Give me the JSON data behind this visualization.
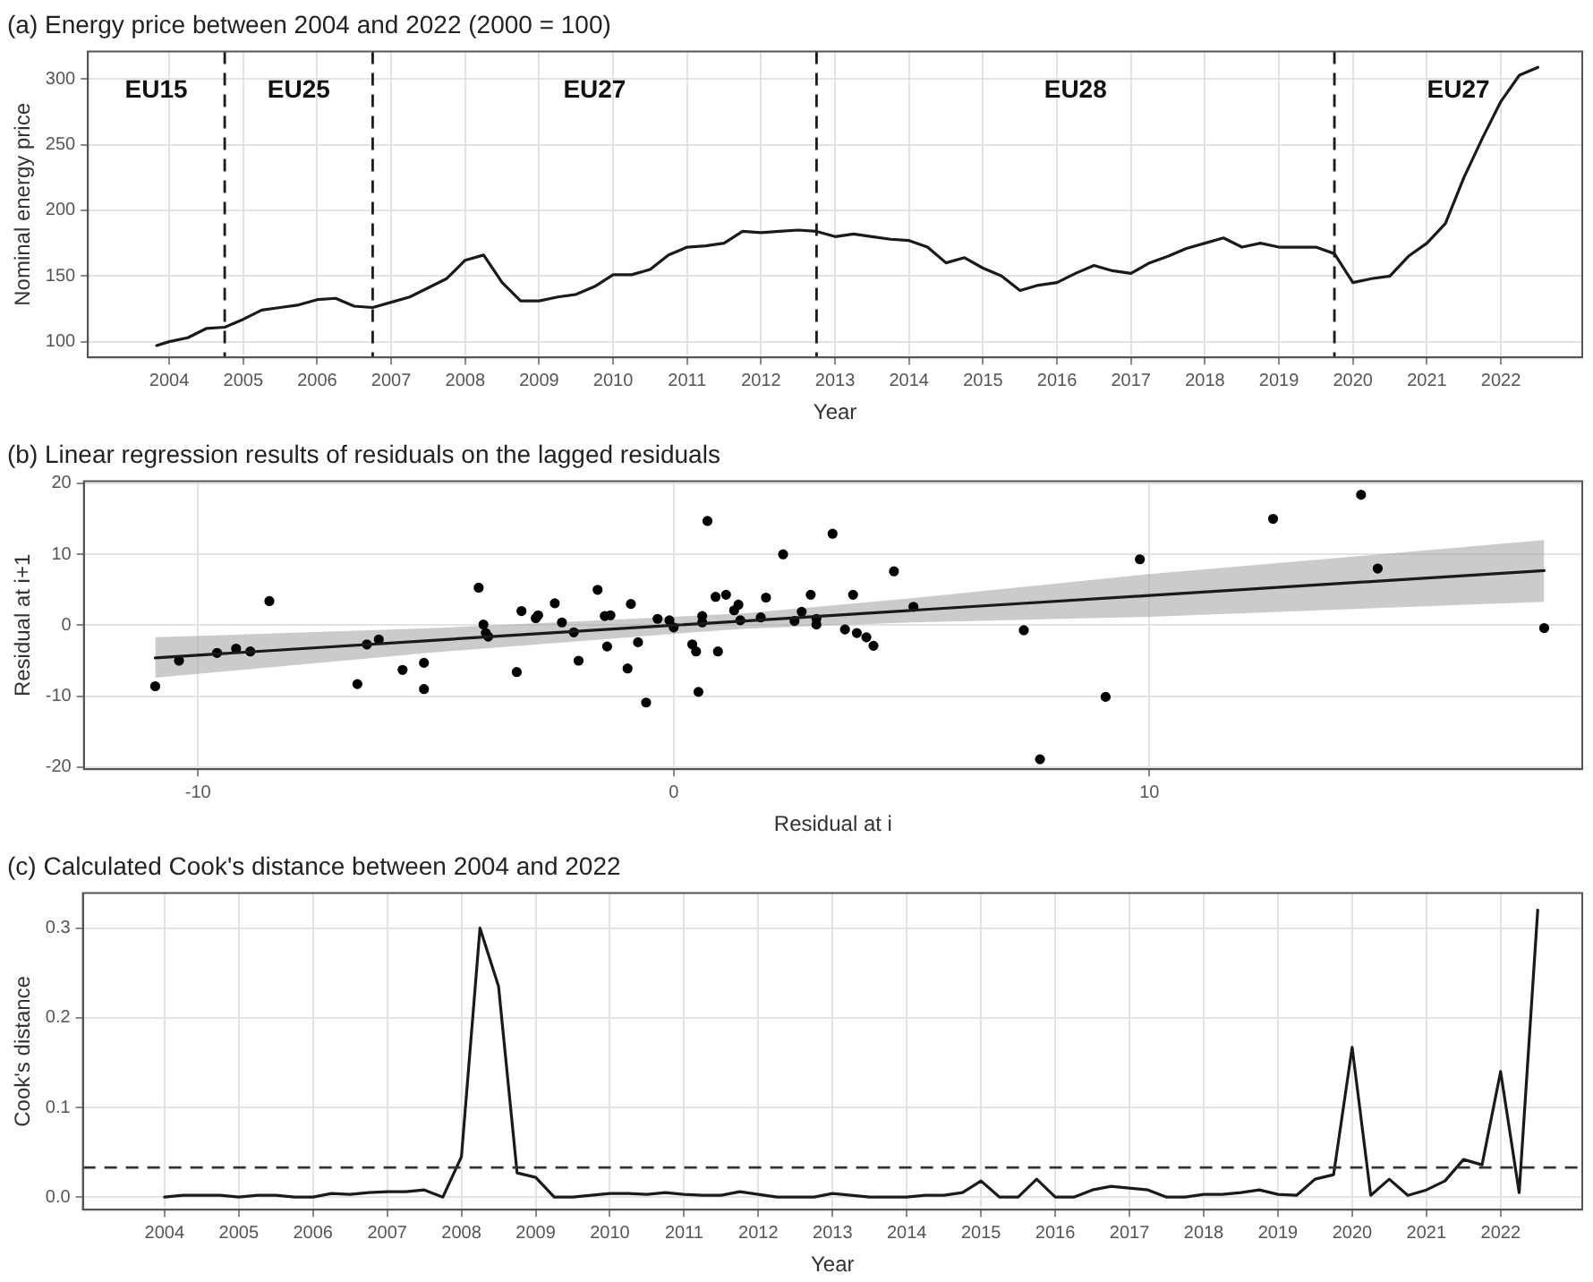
{
  "chart_data": [
    {
      "type": "line",
      "title": "(a) Energy price between 2004 and 2022 (2000 = 100)",
      "xlabel": "Year",
      "ylabel": "Nominal energy price",
      "xlim": [
        2002.9,
        2023.1
      ],
      "ylim": [
        88,
        321
      ],
      "xticks": [
        2004,
        2005,
        2006,
        2007,
        2008,
        2009,
        2010,
        2011,
        2012,
        2013,
        2014,
        2015,
        2016,
        2017,
        2018,
        2019,
        2020,
        2021,
        2022
      ],
      "yticks": [
        100,
        150,
        200,
        250,
        300
      ],
      "grid": true,
      "legend": false,
      "marker": "none",
      "line_style": "solid",
      "series": [
        {
          "color": "#1a1a1a",
          "x": [
            2003.83,
            2004,
            2004.25,
            2004.5,
            2004.75,
            2005,
            2005.25,
            2005.5,
            2005.75,
            2006,
            2006.25,
            2006.5,
            2006.75,
            2007,
            2007.25,
            2007.5,
            2007.75,
            2008,
            2008.25,
            2008.5,
            2008.75,
            2009,
            2009.25,
            2009.5,
            2009.75,
            2010,
            2010.25,
            2010.5,
            2010.75,
            2011,
            2011.25,
            2011.5,
            2011.75,
            2012,
            2012.25,
            2012.5,
            2012.75,
            2013,
            2013.25,
            2013.5,
            2013.75,
            2014,
            2014.25,
            2014.5,
            2014.75,
            2015,
            2015.25,
            2015.5,
            2015.75,
            2016,
            2016.25,
            2016.5,
            2016.75,
            2017,
            2017.25,
            2017.5,
            2017.75,
            2018,
            2018.25,
            2018.5,
            2018.75,
            2019,
            2019.25,
            2019.5,
            2019.75,
            2020,
            2020.25,
            2020.5,
            2020.75,
            2021,
            2021.25,
            2021.5,
            2021.75,
            2022,
            2022.25,
            2022.5
          ],
          "values": [
            97,
            100,
            103,
            110,
            111,
            117,
            124,
            126,
            128,
            132,
            133,
            127,
            126,
            130,
            134,
            141,
            148,
            162,
            166,
            145,
            131,
            131,
            134,
            136,
            142,
            151,
            151,
            155,
            166,
            172,
            173,
            175,
            184,
            183,
            184,
            185,
            184,
            180,
            182,
            180,
            178,
            177,
            172,
            160,
            164,
            156,
            150,
            139,
            143,
            145,
            152,
            158,
            154,
            152,
            160,
            165,
            171,
            175,
            179,
            172,
            175,
            172,
            172,
            172,
            167,
            145,
            148,
            150,
            165,
            175,
            190,
            225,
            255,
            283,
            303,
            309
          ]
        }
      ],
      "ref_lines": [
        {
          "axis": "x",
          "value": 2004.75,
          "line_style": "dashed",
          "color": "#1a1a1a"
        },
        {
          "axis": "x",
          "value": 2006.75,
          "line_style": "dashed",
          "color": "#1a1a1a"
        },
        {
          "axis": "x",
          "value": 2012.75,
          "line_style": "dashed",
          "color": "#1a1a1a"
        },
        {
          "axis": "x",
          "value": 2019.75,
          "line_style": "dashed",
          "color": "#1a1a1a"
        }
      ],
      "annotations": [
        "EU15",
        "EU25",
        "EU27",
        "EU28",
        "EU27"
      ]
    },
    {
      "type": "scatter",
      "title": "(b) Linear regression results of residuals on the lagged residuals",
      "xlabel": "Residual at i",
      "ylabel": "Residual at i+1",
      "xlim": [
        -12.4,
        19.1
      ],
      "ylim": [
        -20.3,
        20.3
      ],
      "xticks": [
        -10,
        0,
        10
      ],
      "yticks": [
        -20,
        -10,
        0,
        10,
        20
      ],
      "grid": true,
      "legend": false,
      "marker": "circle",
      "series": [
        {
          "type": "line",
          "color": "#1a1a1a",
          "marker": "none",
          "x": [
            -10.9,
            -5,
            0,
            1.5,
            5,
            10,
            18.3
          ],
          "values": [
            -4.6,
            -2.1,
            0,
            0.6,
            2.1,
            4.2,
            7.7
          ],
          "lower": [
            -7.4,
            -3.8,
            -1.2,
            -0.5,
            0.4,
            1.2,
            3.3
          ],
          "upper": [
            -1.7,
            -0.4,
            1.2,
            1.7,
            3.8,
            7.2,
            12
          ]
        },
        {
          "color": "#000000",
          "x": [
            -10.9,
            -10.4,
            -9.6,
            -9.2,
            -8.9,
            -8.5,
            -6.65,
            -6.45,
            -6.2,
            -5.7,
            -5.25,
            -5.25,
            -4.1,
            -4.0,
            -3.95,
            -3.9,
            -3.3,
            -3.2,
            -2.9,
            -2.85,
            -2.5,
            -2.35,
            -2.1,
            -2.0,
            -1.6,
            -1.45,
            -1.33,
            -1.4,
            -0.97,
            -0.9,
            -0.75,
            -0.58,
            -0.34,
            -0.09,
            0,
            0.39,
            0.47,
            0.52,
            0.6,
            0.6,
            0.71,
            0.88,
            0.93,
            1.1,
            1.27,
            1.36,
            1.4,
            1.94,
            1.83,
            2.3,
            2.54,
            2.69,
            2.88,
            3.0,
            3.0,
            3.34,
            3.6,
            3.77,
            3.85,
            4.05,
            4.2,
            4.63,
            5.04,
            7.36,
            7.7,
            9.08,
            9.8,
            12.6,
            14.45,
            14.8,
            18.3
          ],
          "values": [
            -8.6,
            -5,
            -3.9,
            -3.3,
            -3.7,
            3.4,
            -8.3,
            -2.7,
            -2,
            -6.3,
            -5.3,
            -9,
            5.3,
            0.1,
            -1.1,
            -1.6,
            -6.6,
            2,
            1,
            1.4,
            3.1,
            0.4,
            -1,
            -5,
            5,
            1.3,
            1.4,
            -3,
            -6.1,
            3,
            -2.4,
            -10.9,
            0.9,
            0.7,
            -0.3,
            -2.7,
            -3.7,
            -9.4,
            1.3,
            0.4,
            14.7,
            4,
            -3.7,
            4.3,
            2.1,
            2.9,
            0.7,
            3.9,
            1.1,
            10,
            0.6,
            1.9,
            4.3,
            0.1,
            0.9,
            12.9,
            -0.6,
            4.3,
            -1.1,
            -1.7,
            -2.9,
            7.6,
            2.6,
            -0.7,
            -18.9,
            -10.1,
            9.3,
            15,
            18.4,
            8,
            -0.4
          ]
        }
      ]
    },
    {
      "type": "line",
      "title": "(c) Calculated Cook's distance between 2004 and 2022",
      "xlabel": "Year",
      "ylabel": "Cook's distance",
      "xlim": [
        2002.9,
        2023.1
      ],
      "ylim": [
        -0.014,
        0.339
      ],
      "xticks": [
        2004,
        2005,
        2006,
        2007,
        2008,
        2009,
        2010,
        2011,
        2012,
        2013,
        2014,
        2015,
        2016,
        2017,
        2018,
        2019,
        2020,
        2021,
        2022
      ],
      "yticks": [
        {
          "value": 0,
          "label": "0.0"
        },
        0.1,
        0.2,
        0.3
      ],
      "grid": true,
      "legend": false,
      "marker": "none",
      "line_style": "solid",
      "series": [
        {
          "color": "#1a1a1a",
          "x": [
            2004,
            2004.25,
            2004.5,
            2004.75,
            2005,
            2005.25,
            2005.5,
            2005.75,
            2006,
            2006.25,
            2006.5,
            2006.75,
            2007,
            2007.25,
            2007.5,
            2007.75,
            2008,
            2008.25,
            2008.5,
            2008.75,
            2009,
            2009.25,
            2009.5,
            2009.75,
            2010,
            2010.25,
            2010.5,
            2010.75,
            2011,
            2011.25,
            2011.5,
            2011.75,
            2012,
            2012.25,
            2012.5,
            2012.75,
            2013,
            2013.25,
            2013.5,
            2013.75,
            2014,
            2014.25,
            2014.5,
            2014.75,
            2015,
            2015.25,
            2015.5,
            2015.75,
            2016,
            2016.25,
            2016.5,
            2016.75,
            2017,
            2017.25,
            2017.5,
            2017.75,
            2018,
            2018.25,
            2018.5,
            2018.75,
            2019,
            2019.25,
            2019.5,
            2019.75,
            2020,
            2020.25,
            2020.5,
            2020.75,
            2021,
            2021.25,
            2021.5,
            2021.75,
            2022,
            2022.25,
            2022.5
          ],
          "values": [
            0,
            0.002,
            0.002,
            0.002,
            0,
            0.002,
            0.002,
            0,
            0,
            0.004,
            0.003,
            0.005,
            0.006,
            0.006,
            0.008,
            0,
            0.045,
            0.3,
            0.235,
            0.027,
            0.022,
            0,
            0,
            0.002,
            0.004,
            0.004,
            0.003,
            0.005,
            0.003,
            0.002,
            0.002,
            0.006,
            0.003,
            0,
            0,
            0,
            0.004,
            0.002,
            0,
            0,
            0,
            0.002,
            0.002,
            0.005,
            0.018,
            0,
            0,
            0.02,
            0,
            0,
            0.008,
            0.012,
            0.01,
            0.008,
            0,
            0,
            0.003,
            0.003,
            0.005,
            0.008,
            0.003,
            0.002,
            0.02,
            0.025,
            0.167,
            0.002,
            0.02,
            0.002,
            0.008,
            0.018,
            0.042,
            0.036,
            0.14,
            0.005,
            0.32
          ]
        }
      ],
      "ref_lines": [
        {
          "axis": "y",
          "value": 0.033,
          "line_style": "dashed",
          "color": "#333333"
        }
      ]
    }
  ]
}
